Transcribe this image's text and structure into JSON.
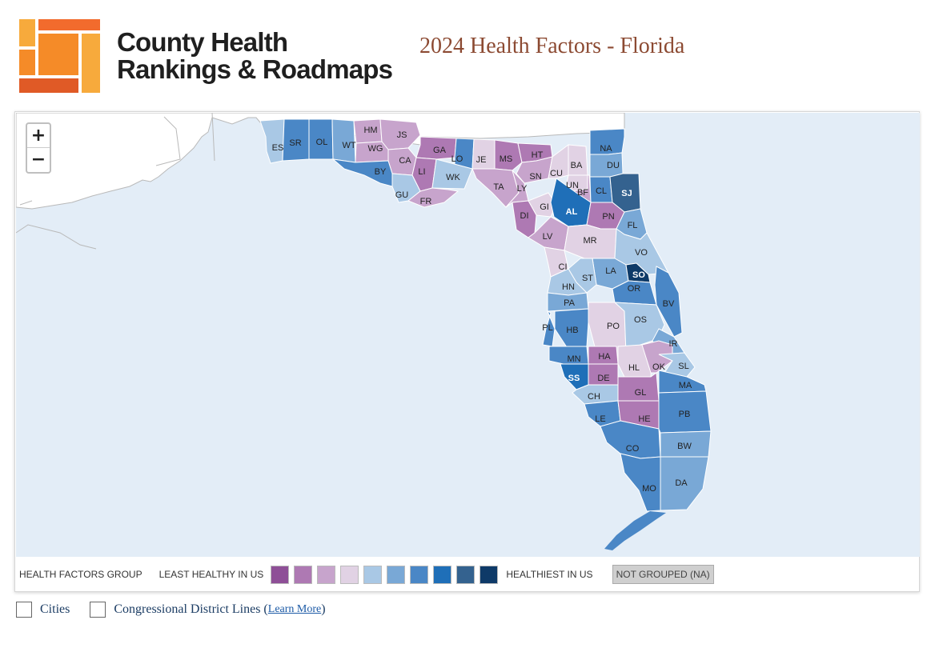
{
  "header": {
    "brand_line1": "County Health",
    "brand_line2": "Rankings & Roadmaps",
    "title": "2024 Health Factors - Florida"
  },
  "map": {
    "zoom_in": "+",
    "zoom_out": "−",
    "colors": {
      "g1": "#8e4f97",
      "g2": "#ae79b3",
      "g3": "#c7a4cc",
      "g4": "#e1d2e4",
      "g5": "#a9c8e5",
      "g6": "#79a8d6",
      "g7": "#4a87c6",
      "g8": "#1f6fb8",
      "g9": "#34628f",
      "g10": "#0e3a68",
      "water": "#e3edf7",
      "land": "#ffffff",
      "border": "#ffffff"
    },
    "counties": [
      {
        "label": "ES",
        "group": 5
      },
      {
        "label": "SR",
        "group": 7
      },
      {
        "label": "OL",
        "group": 7
      },
      {
        "label": "WT",
        "group": 6
      },
      {
        "label": "HM",
        "group": 3
      },
      {
        "label": "JS",
        "group": 3
      },
      {
        "label": "WG",
        "group": 3
      },
      {
        "label": "CA",
        "group": 3
      },
      {
        "label": "BY",
        "group": 7
      },
      {
        "label": "GA",
        "group": 2
      },
      {
        "label": "LO",
        "group": 7
      },
      {
        "label": "LI",
        "group": 2
      },
      {
        "label": "WK",
        "group": 5
      },
      {
        "label": "GU",
        "group": 5
      },
      {
        "label": "FR",
        "group": 3
      },
      {
        "label": "JE",
        "group": 4
      },
      {
        "label": "MS",
        "group": 2
      },
      {
        "label": "HT",
        "group": 2
      },
      {
        "label": "TA",
        "group": 3
      },
      {
        "label": "SN",
        "group": 3
      },
      {
        "label": "LY",
        "group": 3
      },
      {
        "label": "CU",
        "group": 4
      },
      {
        "label": "BA",
        "group": 4
      },
      {
        "label": "UN",
        "group": 4
      },
      {
        "label": "BF",
        "group": 3
      },
      {
        "label": "NA",
        "group": 7
      },
      {
        "label": "DU",
        "group": 6
      },
      {
        "label": "CL",
        "group": 7
      },
      {
        "label": "SJ",
        "group": 9
      },
      {
        "label": "GI",
        "group": 4
      },
      {
        "label": "AL",
        "group": 8
      },
      {
        "label": "DI",
        "group": 2
      },
      {
        "label": "PN",
        "group": 2
      },
      {
        "label": "FL",
        "group": 6
      },
      {
        "label": "LV",
        "group": 3
      },
      {
        "label": "MR",
        "group": 4
      },
      {
        "label": "VO",
        "group": 5
      },
      {
        "label": "CI",
        "group": 4
      },
      {
        "label": "LA",
        "group": 6
      },
      {
        "label": "SO",
        "group": 10
      },
      {
        "label": "ST",
        "group": 5
      },
      {
        "label": "HN",
        "group": 5
      },
      {
        "label": "OR",
        "group": 7
      },
      {
        "label": "BV",
        "group": 7
      },
      {
        "label": "PA",
        "group": 6
      },
      {
        "label": "PO",
        "group": 4
      },
      {
        "label": "OS",
        "group": 5
      },
      {
        "label": "PL",
        "group": 7
      },
      {
        "label": "HB",
        "group": 7
      },
      {
        "label": "IR",
        "group": 6
      },
      {
        "label": "HA",
        "group": 2
      },
      {
        "label": "MN",
        "group": 7
      },
      {
        "label": "HL",
        "group": 4
      },
      {
        "label": "OK",
        "group": 3
      },
      {
        "label": "SL",
        "group": 5
      },
      {
        "label": "SS",
        "group": 8
      },
      {
        "label": "DE",
        "group": 2
      },
      {
        "label": "GL",
        "group": 2
      },
      {
        "label": "MA",
        "group": 7
      },
      {
        "label": "CH",
        "group": 5
      },
      {
        "label": "LE",
        "group": 7
      },
      {
        "label": "HE",
        "group": 2
      },
      {
        "label": "PB",
        "group": 7
      },
      {
        "label": "CO",
        "group": 7
      },
      {
        "label": "BW",
        "group": 6
      },
      {
        "label": "MO",
        "group": 7
      },
      {
        "label": "DA",
        "group": 6
      }
    ]
  },
  "legend": {
    "title": "HEALTH FACTORS GROUP",
    "least": "LEAST HEALTHY IN US",
    "healthiest": "HEALTHIEST IN US",
    "not_grouped": "NOT GROUPED (NA)",
    "swatch_colors": [
      "#8e4f97",
      "#ae79b3",
      "#c7a4cc",
      "#e1d2e4",
      "#a9c8e5",
      "#79a8d6",
      "#4a87c6",
      "#1f6fb8",
      "#34628f",
      "#0e3a68"
    ]
  },
  "options": {
    "cities_label": "Cities",
    "districts_label": "Congressional District Lines (",
    "learn_more": "Learn More",
    "close_paren": ")"
  }
}
